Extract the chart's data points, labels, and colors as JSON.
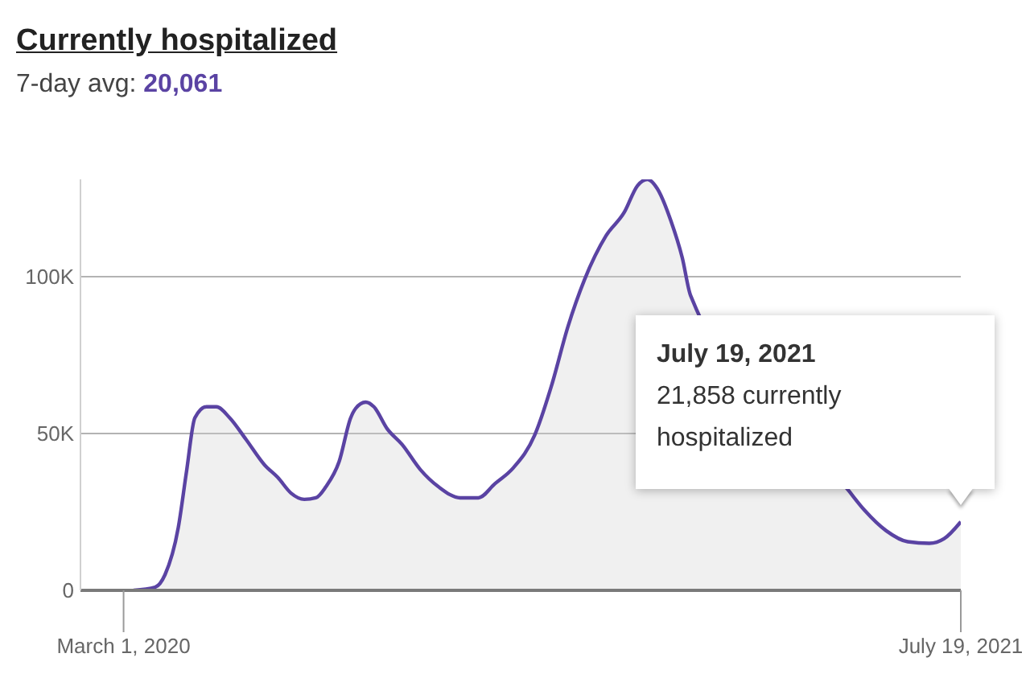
{
  "chart_data": {
    "type": "area",
    "title": "Currently hospitalized",
    "subtitle": "7-day avg: 20,061",
    "x": [
      "2020-03-07",
      "2020-03-20",
      "2020-03-26",
      "2020-04-03",
      "2020-04-08",
      "2020-04-13",
      "2020-04-20",
      "2020-04-26",
      "2020-05-04",
      "2020-05-14",
      "2020-05-25",
      "2020-06-02",
      "2020-06-10",
      "2020-06-18",
      "2020-06-25",
      "2020-07-01",
      "2020-07-09",
      "2020-07-16",
      "2020-07-19",
      "2020-07-25",
      "2020-07-30",
      "2020-08-07",
      "2020-08-16",
      "2020-08-27",
      "2020-09-07",
      "2020-09-20",
      "2020-10-01",
      "2020-10-11",
      "2020-10-22",
      "2020-11-04",
      "2020-11-14",
      "2020-11-24",
      "2020-12-04",
      "2020-12-17",
      "2020-12-28",
      "2021-01-05",
      "2021-01-11",
      "2021-01-17",
      "2021-01-25",
      "2021-02-01",
      "2021-02-06",
      "2021-03-25",
      "2021-05-12",
      "2021-05-22",
      "2021-06-04",
      "2021-06-17",
      "2021-06-30",
      "2021-07-09",
      "2021-07-19"
    ],
    "values": [
      0,
      1000,
      5000,
      20000,
      38000,
      55000,
      58500,
      58500,
      55000,
      48000,
      40000,
      36000,
      31000,
      29000,
      29500,
      33000,
      41000,
      55000,
      58000,
      60000,
      58500,
      51500,
      46500,
      38500,
      33000,
      29500,
      29500,
      34000,
      39000,
      49500,
      65000,
      84000,
      99000,
      113000,
      120500,
      129000,
      131000,
      128000,
      118000,
      106000,
      94000,
      null,
      32000,
      25500,
      19000,
      15500,
      15000,
      16500,
      21858
    ],
    "color": "#5a43a3",
    "xlim": [
      "2020-02-04",
      "2021-07-19"
    ],
    "xticks": [
      {
        "value": "2020-03-01",
        "label": "March 1, 2020"
      },
      {
        "value": "2021-07-19",
        "label": "July 19, 2021"
      }
    ],
    "ylim": [
      0,
      131000
    ],
    "yticks": [
      0,
      {
        "value": 50000,
        "label": "50K"
      },
      {
        "value": 100000,
        "label": "100K"
      }
    ],
    "grid": "y",
    "annotations": [
      "July 19, 2021",
      "21,858 currently hospitalized"
    ]
  }
}
